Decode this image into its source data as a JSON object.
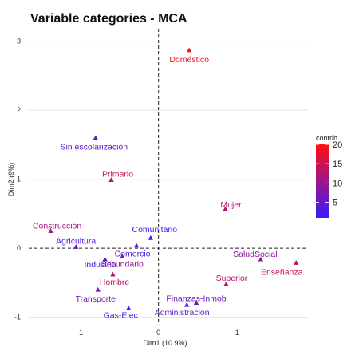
{
  "chart_data": {
    "type": "scatter",
    "title": "Variable categories - MCA",
    "xlabel": "Dim1 (10.9%)",
    "ylabel": "Dim2 (9%)",
    "xlim": [
      -1.65,
      1.9
    ],
    "ylim": [
      -1.12,
      3.18
    ],
    "x_ticks": [
      -1,
      0,
      1
    ],
    "y_ticks": [
      -1,
      0,
      1,
      2,
      3
    ],
    "grid": "horizontal",
    "reference_lines": {
      "x": 0,
      "y": 0,
      "style": "dashed"
    },
    "legend": {
      "title": "contrib",
      "placement": "right",
      "min": 1,
      "max": 20,
      "ticks": [
        5,
        10,
        15,
        20
      ]
    },
    "color_scale": [
      "#3a1aff",
      "#ff1010"
    ],
    "points": [
      {
        "label": "Doméstico",
        "x": 0.39,
        "y": 2.87,
        "contrib": 20
      },
      {
        "label": "Sin escolarización",
        "x": -0.8,
        "y": 1.6,
        "contrib": 5
      },
      {
        "label": "Primario",
        "x": -0.6,
        "y": 0.99,
        "contrib": 14
      },
      {
        "label": "Mujer",
        "x": 0.85,
        "y": 0.57,
        "contrib": 13
      },
      {
        "label": "Construcción",
        "x": -1.37,
        "y": 0.25,
        "contrib": 11
      },
      {
        "label": "Comunitario",
        "x": -0.1,
        "y": 0.15,
        "contrib": 1
      },
      {
        "label": "Agricultura",
        "x": -1.05,
        "y": 0.02,
        "contrib": 4
      },
      {
        "label": "Comercio",
        "x": -0.28,
        "y": 0.04,
        "contrib": 3
      },
      {
        "label": "Industria",
        "x": -0.68,
        "y": -0.16,
        "contrib": 3
      },
      {
        "label": "Secundario",
        "x": -0.46,
        "y": -0.12,
        "contrib": 9
      },
      {
        "label": "SaludSocial",
        "x": 1.3,
        "y": -0.16,
        "contrib": 9
      },
      {
        "label": "Enseñanza",
        "x": 1.75,
        "y": -0.21,
        "contrib": 14
      },
      {
        "label": "Hombre",
        "x": -0.58,
        "y": -0.38,
        "contrib": 13
      },
      {
        "label": "Superior",
        "x": 0.86,
        "y": -0.52,
        "contrib": 13
      },
      {
        "label": "Transporte",
        "x": -0.77,
        "y": -0.6,
        "contrib": 7
      },
      {
        "label": "Finanzas-Inmob",
        "x": 0.48,
        "y": -0.79,
        "contrib": 6
      },
      {
        "label": "Administración",
        "x": 0.36,
        "y": -0.82,
        "contrib": 5
      },
      {
        "label": "Gas-Elec",
        "x": -0.38,
        "y": -0.87,
        "contrib": 3
      }
    ]
  }
}
